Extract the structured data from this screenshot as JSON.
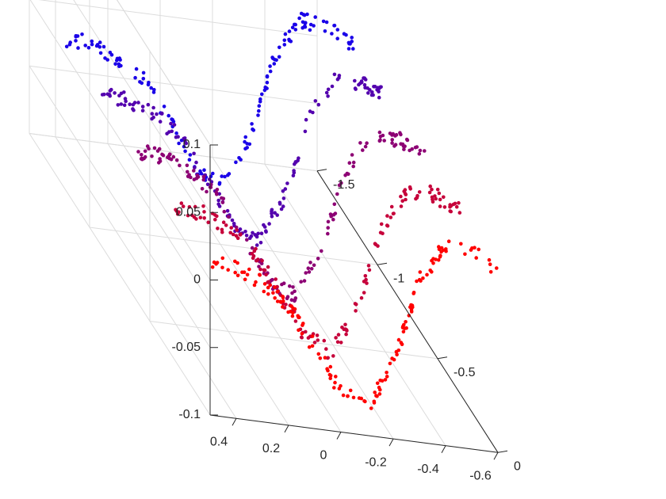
{
  "chart_data": {
    "type": "scatter",
    "title": "",
    "xlabel": "",
    "ylabel": "",
    "zlabel": "",
    "grid": true,
    "box": true,
    "marker_size": 2.3,
    "color_start": "#ff0000",
    "color_end": "#1a00e8",
    "xlim": [
      -0.6,
      0.5
    ],
    "ylim": [
      0,
      -1.5
    ],
    "zlim": [
      -0.1,
      0.1
    ],
    "x_ticks": [
      0.4,
      0.2,
      0,
      -0.2,
      -0.4,
      -0.6
    ],
    "x_tick_labels": [
      "0.4",
      "0.2",
      "0",
      "-0.2",
      "-0.4",
      "-0.6"
    ],
    "y_ticks": [
      0,
      -0.5,
      -1,
      -1.5
    ],
    "y_tick_labels": [
      "0",
      "-0.5",
      "-1",
      "-1.5"
    ],
    "z_ticks": [
      -0.1,
      -0.05,
      0,
      0.05,
      0.1
    ],
    "z_tick_labels": [
      "-0.1",
      "-0.05",
      "0",
      "0.05",
      "0.1"
    ],
    "curves": {
      "count": 5,
      "y_start": 0,
      "y_spacing": -0.3,
      "points_per_curve": 150,
      "x_range": [
        0.5,
        -0.6
      ],
      "profile_x": [
        0.5,
        0.4,
        0.3,
        0.2,
        0.1,
        0.0,
        -0.1,
        -0.2,
        -0.3,
        -0.4,
        -0.5,
        -0.6
      ],
      "profile_z": [
        0.012,
        0.011,
        0.003,
        -0.012,
        -0.04,
        -0.07,
        -0.08,
        -0.045,
        0.02,
        0.048,
        0.046,
        0.036
      ],
      "jitter": 0.006
    }
  }
}
